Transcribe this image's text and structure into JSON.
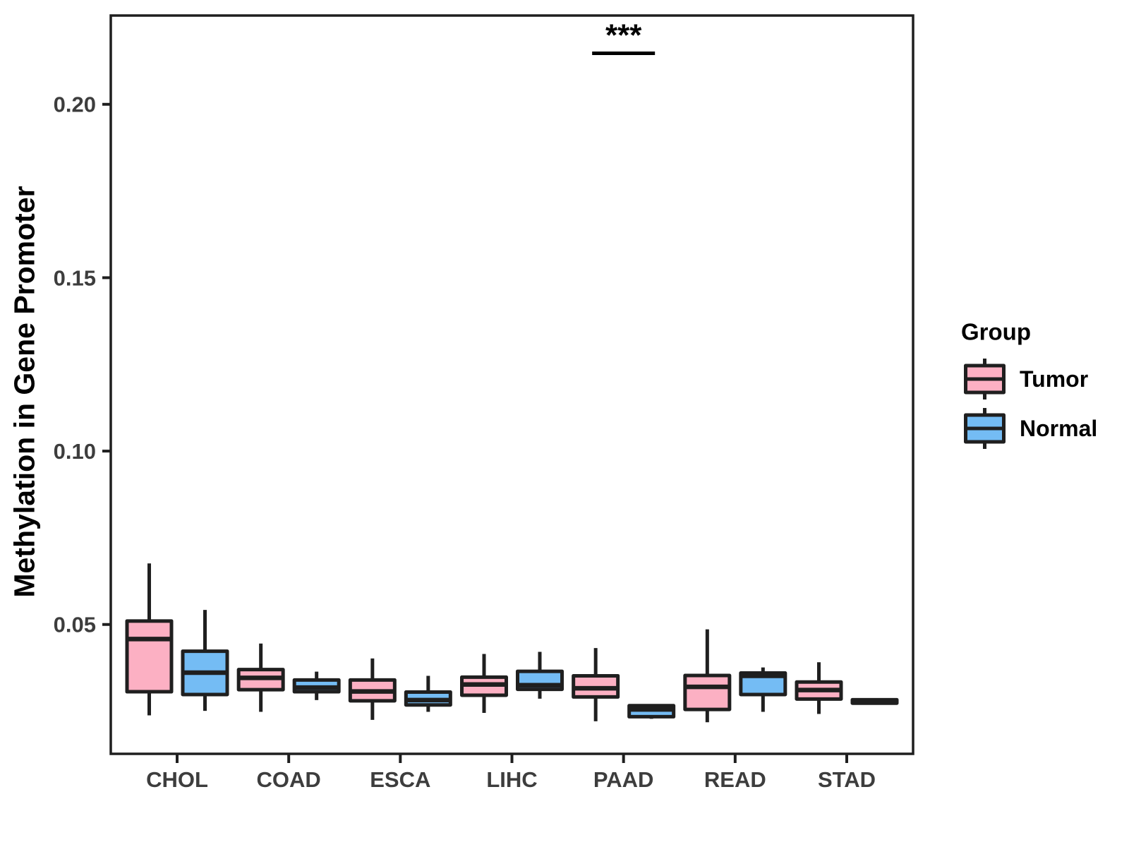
{
  "chart_data": {
    "type": "grouped_boxplot",
    "title": "",
    "xlabel": "",
    "ylabel": "Methylation in Gene Promoter",
    "categories": [
      "CHOL",
      "COAD",
      "ESCA",
      "LIHC",
      "PAAD",
      "READ",
      "STAD"
    ],
    "y_ticks": [
      0.05,
      0.1,
      0.15,
      0.2
    ],
    "y_tick_labels": [
      "0.05",
      "0.10",
      "0.15",
      "0.20"
    ],
    "ylim": [
      0.0127,
      0.2256
    ],
    "grid": false,
    "legend_position": "right",
    "series": [
      {
        "name": "Tumor",
        "color": "#FCB0C3",
        "boxes": [
          {
            "category": "CHOL",
            "whisker_low": 0.0238,
            "q1": 0.0306,
            "median": 0.0458,
            "q3": 0.051,
            "whisker_high": 0.0676
          },
          {
            "category": "COAD",
            "whisker_low": 0.0248,
            "q1": 0.0312,
            "median": 0.0346,
            "q3": 0.037,
            "whisker_high": 0.0445
          },
          {
            "category": "ESCA",
            "whisker_low": 0.0225,
            "q1": 0.028,
            "median": 0.0307,
            "q3": 0.034,
            "whisker_high": 0.0402
          },
          {
            "category": "LIHC",
            "whisker_low": 0.0245,
            "q1": 0.0296,
            "median": 0.0327,
            "q3": 0.0348,
            "whisker_high": 0.0415
          },
          {
            "category": "PAAD",
            "whisker_low": 0.0221,
            "q1": 0.0291,
            "median": 0.0316,
            "q3": 0.0352,
            "whisker_high": 0.0432
          },
          {
            "category": "READ",
            "whisker_low": 0.0218,
            "q1": 0.0255,
            "median": 0.032,
            "q3": 0.0353,
            "whisker_high": 0.0486
          },
          {
            "category": "STAD",
            "whisker_low": 0.0242,
            "q1": 0.0285,
            "median": 0.0311,
            "q3": 0.0334,
            "whisker_high": 0.0391
          }
        ]
      },
      {
        "name": "Normal",
        "color": "#74BCF4",
        "boxes": [
          {
            "category": "CHOL",
            "whisker_low": 0.0251,
            "q1": 0.0298,
            "median": 0.0361,
            "q3": 0.0423,
            "whisker_high": 0.0542
          },
          {
            "category": "COAD",
            "whisker_low": 0.0282,
            "q1": 0.0306,
            "median": 0.0318,
            "q3": 0.034,
            "whisker_high": 0.0364
          },
          {
            "category": "ESCA",
            "whisker_low": 0.0248,
            "q1": 0.0268,
            "median": 0.0282,
            "q3": 0.0305,
            "whisker_high": 0.0352
          },
          {
            "category": "LIHC",
            "whisker_low": 0.0286,
            "q1": 0.0313,
            "median": 0.0325,
            "q3": 0.0365,
            "whisker_high": 0.0421
          },
          {
            "category": "PAAD",
            "whisker_low": 0.0228,
            "q1": 0.0234,
            "median": 0.0255,
            "q3": 0.0266,
            "whisker_high": 0.0266
          },
          {
            "category": "READ",
            "whisker_low": 0.0248,
            "q1": 0.0298,
            "median": 0.0352,
            "q3": 0.036,
            "whisker_high": 0.0376
          },
          {
            "category": "STAD",
            "whisker_low": 0.0269,
            "q1": 0.0273,
            "median": 0.0278,
            "q3": 0.0283,
            "whisker_high": 0.0286
          }
        ]
      }
    ],
    "annotation": {
      "label": "***",
      "category": "PAAD",
      "y": 0.2147
    },
    "legend": {
      "title": "Group",
      "entries": [
        {
          "label": "Tumor"
        },
        {
          "label": "Normal"
        }
      ]
    }
  },
  "colors": {
    "outline": "#1f1f1f",
    "tick_label": "#3d3d3d",
    "text": "#000000",
    "background": "#ffffff"
  }
}
